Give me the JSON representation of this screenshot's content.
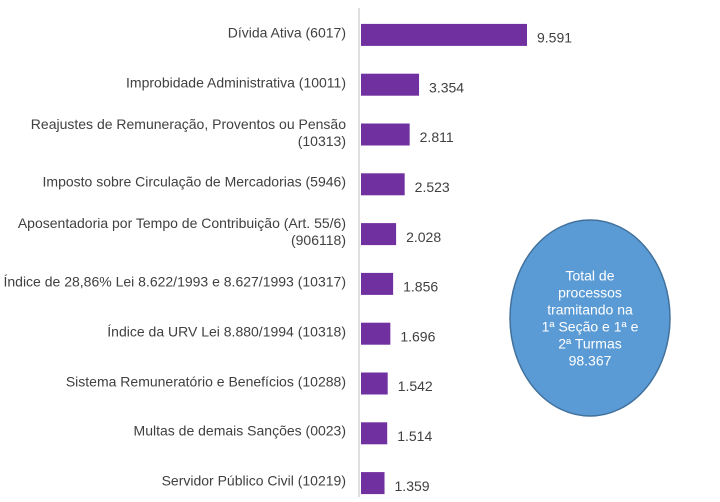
{
  "chart_data": {
    "type": "barh",
    "categories": [
      "Dívida Ativa (6017)",
      "Improbidade Administrativa (10011)",
      "Reajustes de Remuneração, Proventos ou Pensão (10313)",
      "Imposto sobre Circulação de Mercadorias (5946)",
      "Aposentadoria por Tempo de Contribuição (Art. 55/6) (906118)",
      "Índice de 28,86% Lei 8.622/1993 e 8.627/1993 (10317)",
      "Índice da URV Lei 8.880/1994 (10318)",
      "Sistema Remuneratório e Benefícios (10288)",
      "Multas de demais Sanções (0023)",
      "Servidor Público Civil (10219)"
    ],
    "values": [
      9591,
      3354,
      2811,
      2523,
      2028,
      1856,
      1696,
      1542,
      1514,
      1359
    ],
    "value_labels": [
      "9.591",
      "3.354",
      "2.811",
      "2.523",
      "2.028",
      "1.856",
      "1.696",
      "1.542",
      "1.514",
      "1.359"
    ],
    "color": "#7030a0",
    "annotation": {
      "lines": [
        "Total de",
        "processos",
        "tramitando na",
        "1ª Seção e 1ª e",
        "2ª Turmas",
        "98.367"
      ],
      "color": "#5b9bd5"
    }
  }
}
